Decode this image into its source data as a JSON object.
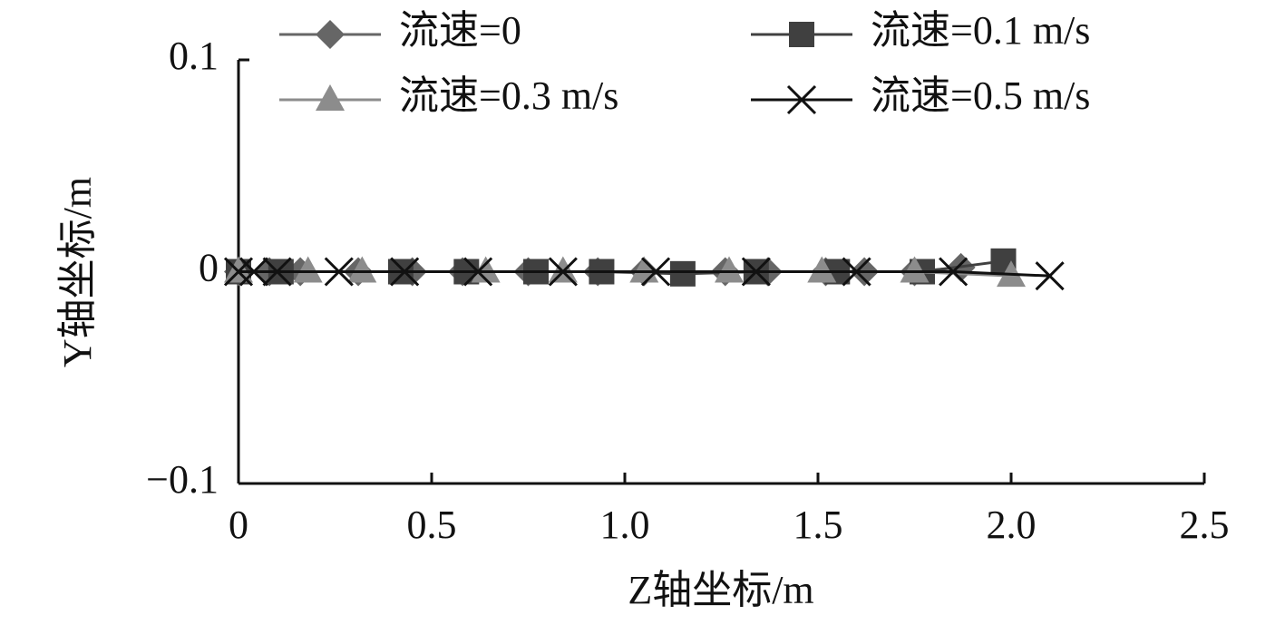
{
  "chart_data": {
    "type": "line",
    "xlabel": "Z轴坐标/m",
    "ylabel": "Y轴坐标/m",
    "xlim": [
      0,
      2.5
    ],
    "ylim": [
      -0.1,
      0.1
    ],
    "xticks": [
      0,
      0.5,
      {
        "value": 1,
        "label": "1.0"
      },
      1.5,
      {
        "value": 2,
        "label": "2.0"
      },
      2.5
    ],
    "yticks": [
      {
        "value": -0.1,
        "label": "−0.1"
      },
      0,
      0.1
    ],
    "series": [
      {
        "name": "流速=0",
        "color": "#666666",
        "marker": "diamond",
        "x": [
          0,
          0.08,
          0.16,
          0.31,
          0.45,
          0.58,
          0.75,
          0.93,
          1.05,
          1.26,
          1.37,
          1.52,
          1.62,
          1.75,
          1.87
        ],
        "values": [
          0,
          0,
          0,
          0,
          0,
          0,
          0,
          0,
          0,
          0,
          0,
          0,
          0,
          0,
          0.002
        ]
      },
      {
        "name": "流速=0.1 m/s",
        "color": "#404040",
        "marker": "square",
        "x": [
          0,
          0.11,
          0.42,
          0.59,
          0.77,
          0.94,
          1.15,
          1.34,
          1.55,
          1.77,
          1.98
        ],
        "values": [
          0,
          0,
          0,
          0,
          0,
          0,
          -0.001,
          0,
          0,
          0,
          0.005
        ]
      },
      {
        "name": "流速=0.3 m/s",
        "color": "#8c8c8c",
        "marker": "triangle",
        "x": [
          0,
          0.18,
          0.32,
          0.64,
          0.84,
          1.05,
          1.27,
          1.51,
          1.75,
          2.0
        ],
        "values": [
          0,
          0,
          0,
          0,
          0,
          0,
          0,
          0,
          0,
          -0.002
        ]
      },
      {
        "name": "流速=0.5 m/s",
        "color": "#111111",
        "marker": "cross",
        "x": [
          0,
          0.04,
          0.1,
          0.26,
          0.43,
          0.62,
          0.84,
          1.08,
          1.34,
          1.6,
          1.85,
          2.1
        ],
        "values": [
          0,
          0,
          0,
          0,
          0,
          0,
          0,
          0,
          0,
          0,
          0,
          -0.002
        ]
      }
    ]
  }
}
